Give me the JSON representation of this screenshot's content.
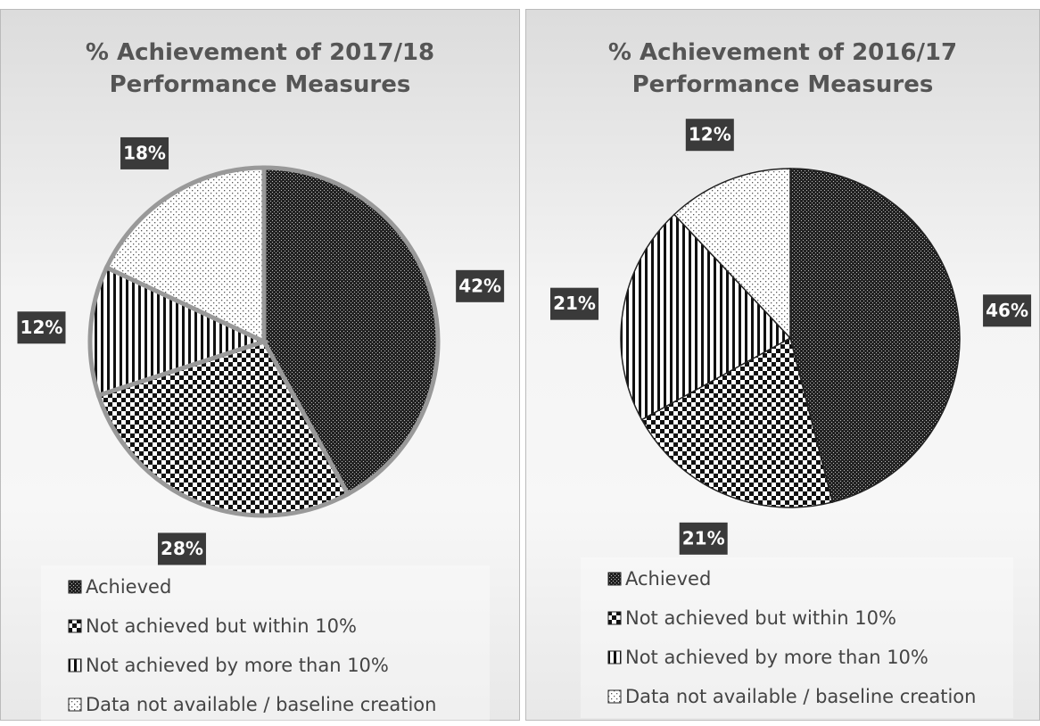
{
  "chart_data": [
    {
      "type": "pie",
      "title": "% Achievement of 2017/18 Performance Measures",
      "categories": [
        "Achieved",
        "Not achieved but within 10%",
        "Not achieved by more than 10%",
        "Data not available / baseline creation"
      ],
      "values": [
        42,
        28,
        12,
        18
      ],
      "value_labels": [
        "42%",
        "28%",
        "12%",
        "18%"
      ]
    },
    {
      "type": "pie",
      "title": "% Achievement of 2016/17 Performance Measures",
      "categories": [
        "Achieved",
        "Not achieved but within 10%",
        "Not achieved by more than 10%",
        "Data not available / baseline creation"
      ],
      "values": [
        46,
        21,
        21,
        12
      ],
      "value_labels": [
        "46%",
        "21%",
        "21%",
        "12%"
      ]
    }
  ]
}
